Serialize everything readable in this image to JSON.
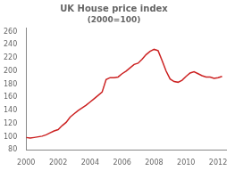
{
  "chart_data": {
    "type": "line",
    "title": "UK House price index",
    "subtitle": "(2000=100)",
    "color": "#cc2222",
    "grid": false,
    "xlim": [
      2000,
      2012.5
    ],
    "ylim": [
      80,
      265
    ],
    "xticks": [
      2000,
      2002,
      2004,
      2006,
      2008,
      2010,
      2012
    ],
    "yticks": [
      80,
      100,
      120,
      140,
      160,
      180,
      200,
      220,
      240,
      260
    ],
    "x": [
      2000.0,
      2000.25,
      2000.5,
      2000.75,
      2001.0,
      2001.25,
      2001.5,
      2001.75,
      2002.0,
      2002.25,
      2002.5,
      2002.75,
      2003.0,
      2003.25,
      2003.5,
      2003.75,
      2004.0,
      2004.25,
      2004.5,
      2004.75,
      2005.0,
      2005.25,
      2005.5,
      2005.75,
      2006.0,
      2006.25,
      2006.5,
      2006.75,
      2007.0,
      2007.25,
      2007.5,
      2007.75,
      2008.0,
      2008.25,
      2008.5,
      2008.75,
      2009.0,
      2009.25,
      2009.5,
      2009.75,
      2010.0,
      2010.25,
      2010.5,
      2010.75,
      2011.0,
      2011.25,
      2011.5,
      2011.75,
      2012.0,
      2012.25
    ],
    "values": [
      99,
      98,
      99,
      100,
      101,
      103,
      106,
      109,
      111,
      117,
      122,
      130,
      135,
      140,
      144,
      148,
      153,
      158,
      163,
      168,
      187,
      190,
      190,
      191,
      196,
      200,
      205,
      210,
      212,
      218,
      225,
      230,
      233,
      231,
      216,
      200,
      188,
      184,
      183,
      186,
      192,
      197,
      199,
      196,
      193,
      191,
      191,
      189,
      190,
      192
    ]
  }
}
